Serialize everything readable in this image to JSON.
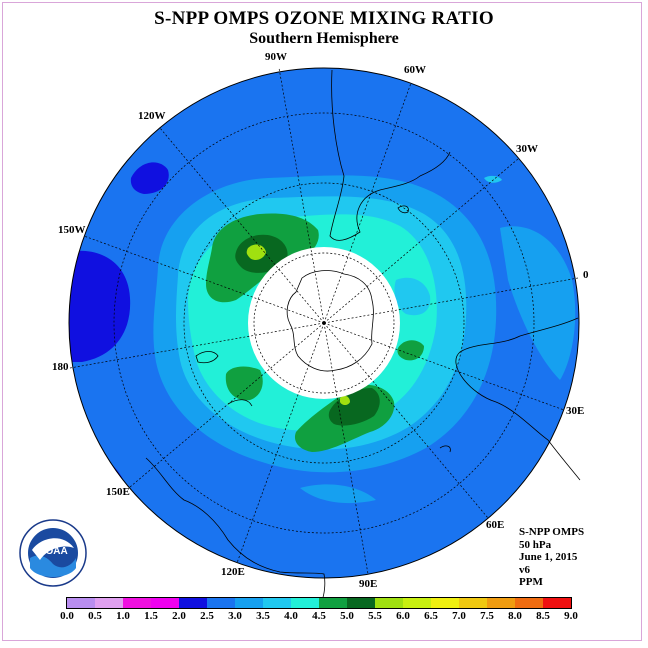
{
  "title": "S-NPP OMPS OZONE MIXING RATIO",
  "subtitle": "Southern Hemisphere",
  "longitude_labels": [
    "90W",
    "60W",
    "30W",
    "0",
    "30E",
    "60E",
    "90E",
    "120E",
    "150E",
    "180",
    "150W",
    "120W"
  ],
  "info": {
    "product": "S-NPP OMPS",
    "level": "50 hPa",
    "date": "June 1, 2015",
    "version": "v6",
    "units": "PPM"
  },
  "logo": {
    "text": "NOAA",
    "icon": "noaa-logo-icon"
  },
  "colorbar": {
    "ticks": [
      "0.0",
      "0.5",
      "1.0",
      "1.5",
      "2.0",
      "2.5",
      "3.0",
      "3.5",
      "4.0",
      "4.5",
      "5.0",
      "5.5",
      "6.0",
      "6.5",
      "7.0",
      "7.5",
      "8.0",
      "8.5",
      "9.0"
    ],
    "colors": [
      "#b98ef0",
      "#e0a0f0",
      "#f010e0",
      "#f000f0",
      "#1010e0",
      "#1a74f0",
      "#16a0f0",
      "#20c8f0",
      "#22f0d8",
      "#10a040",
      "#086820",
      "#a0e010",
      "#c8f010",
      "#f0f010",
      "#f0c810",
      "#f09c10",
      "#f06c10",
      "#f01010",
      "#8a5030"
    ]
  },
  "map_colors": {
    "ocean_level_2_0": "#1010e0",
    "level_2_5": "#1a74f0",
    "level_3_0": "#16a0f0",
    "level_3_5": "#20c8f0",
    "level_4_0": "#22f0d8",
    "level_4_5": "#10a040",
    "level_5_0": "#086820",
    "level_5_5": "#a0e010",
    "no_data": "#ffffff"
  }
}
